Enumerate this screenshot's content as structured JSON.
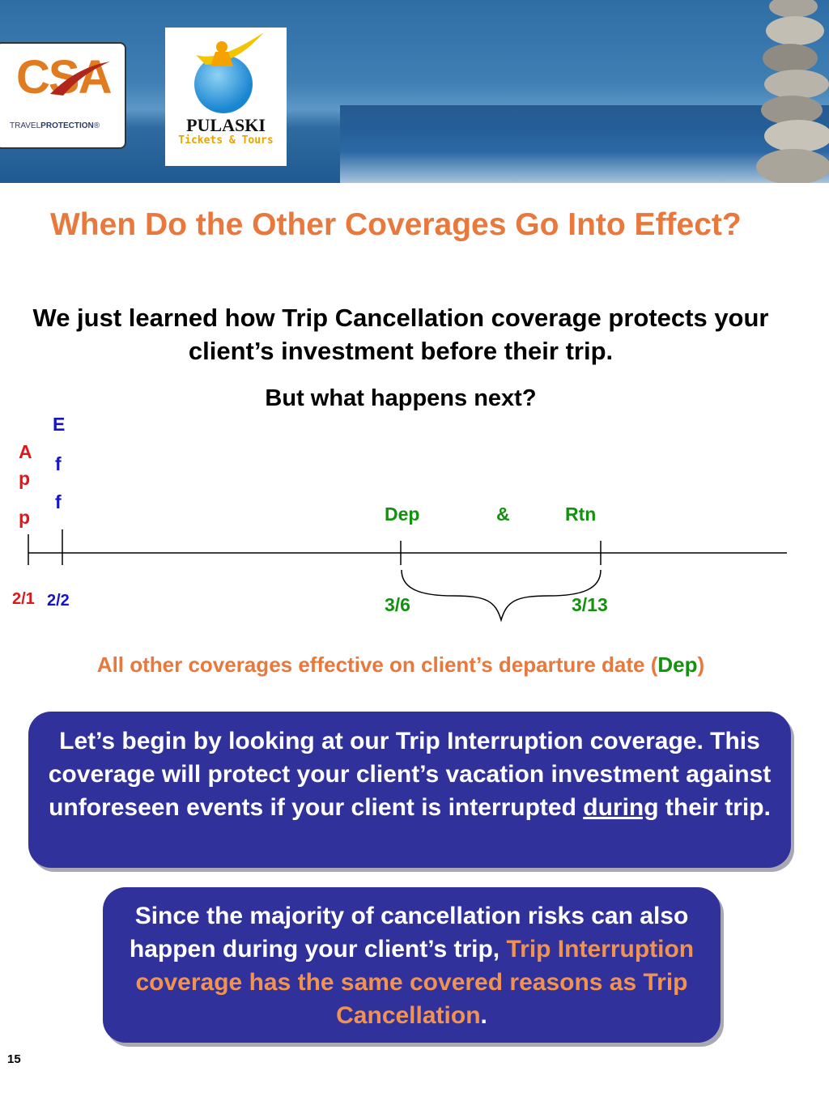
{
  "header": {
    "csa_logo": {
      "brand": "CSA",
      "tagline_light": "TRAVEL",
      "tagline_bold": "PROTECTION",
      "mark": "®"
    },
    "pulaski_logo": {
      "name": "PULASKI",
      "subtitle": "Tickets & Tours"
    }
  },
  "title": "When Do the Other Coverages Go Into Effect?",
  "intro": "We just learned how Trip Cancellation coverage protects your client’s investment before their trip.",
  "question": "But what happens next?",
  "timeline": {
    "app_letters": [
      "A",
      "p",
      "p"
    ],
    "eff_letters": [
      "E",
      "f",
      "f"
    ],
    "dep_label": "Dep",
    "amp_label": "&",
    "rtn_label": "Rtn",
    "date_app": "2/1",
    "date_eff": "2/2",
    "date_dep": "3/6",
    "date_rtn": "3/13"
  },
  "effective_note": {
    "text": "All other coverages effective on client’s departure date (",
    "dep": "Dep",
    "close": ")"
  },
  "box1": {
    "text_before": "Let’s begin by looking at our Trip Interruption coverage. This coverage will protect your client’s vacation investment against unforeseen events if your client is interrupted ",
    "underlined": "during",
    "text_after": " their trip."
  },
  "box2": {
    "text_before": "Since the majority of cancellation risks can also happen during your client’s trip, ",
    "highlight": "Trip Interruption coverage has the same covered reasons as Trip Cancellation",
    "text_after": "."
  },
  "page_number": "15",
  "colors": {
    "title_orange": "#e8783c",
    "box_blue": "#30319a",
    "app_red": "#e0161b",
    "eff_blue": "#1414c8",
    "trip_green": "#12920f"
  },
  "icons": [
    "stacked-stones-image",
    "globe-figure-logo"
  ]
}
